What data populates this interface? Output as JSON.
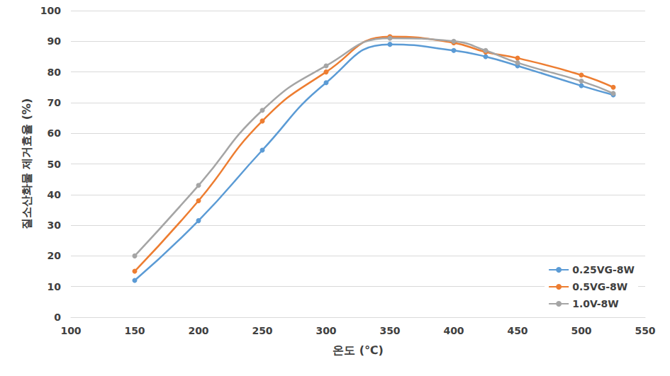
{
  "chart_data": {
    "type": "line",
    "x_label": "온도 (℃)",
    "y_label": "질소산화물 제거효율 (%)",
    "x": [
      150,
      200,
      250,
      300,
      350,
      400,
      425,
      450,
      500,
      525
    ],
    "series": [
      {
        "name": "0.25VG-8W",
        "color": "#5b9bd5",
        "values": [
          12,
          31.5,
          54.5,
          76.5,
          89,
          87,
          85,
          82,
          75.5,
          72.5
        ]
      },
      {
        "name": "0.5VG-8W",
        "color": "#ed7d31",
        "values": [
          15,
          38,
          64,
          80,
          91.5,
          89.5,
          86.5,
          84.5,
          79,
          75
        ]
      },
      {
        "name": "1.0V-8W",
        "color": "#a5a5a5",
        "values": [
          20,
          43,
          67.5,
          82,
          91,
          90,
          87,
          83,
          77,
          73
        ]
      }
    ],
    "xlim": [
      100,
      550
    ],
    "xticks": [
      100,
      150,
      200,
      250,
      300,
      350,
      400,
      450,
      500,
      550
    ],
    "ylim": [
      0,
      100
    ],
    "yticks": [
      0,
      10,
      20,
      30,
      40,
      50,
      60,
      70,
      80,
      90,
      100
    ],
    "grid": true,
    "legend": "lower right",
    "marker": "circle",
    "line_style": "solid"
  }
}
